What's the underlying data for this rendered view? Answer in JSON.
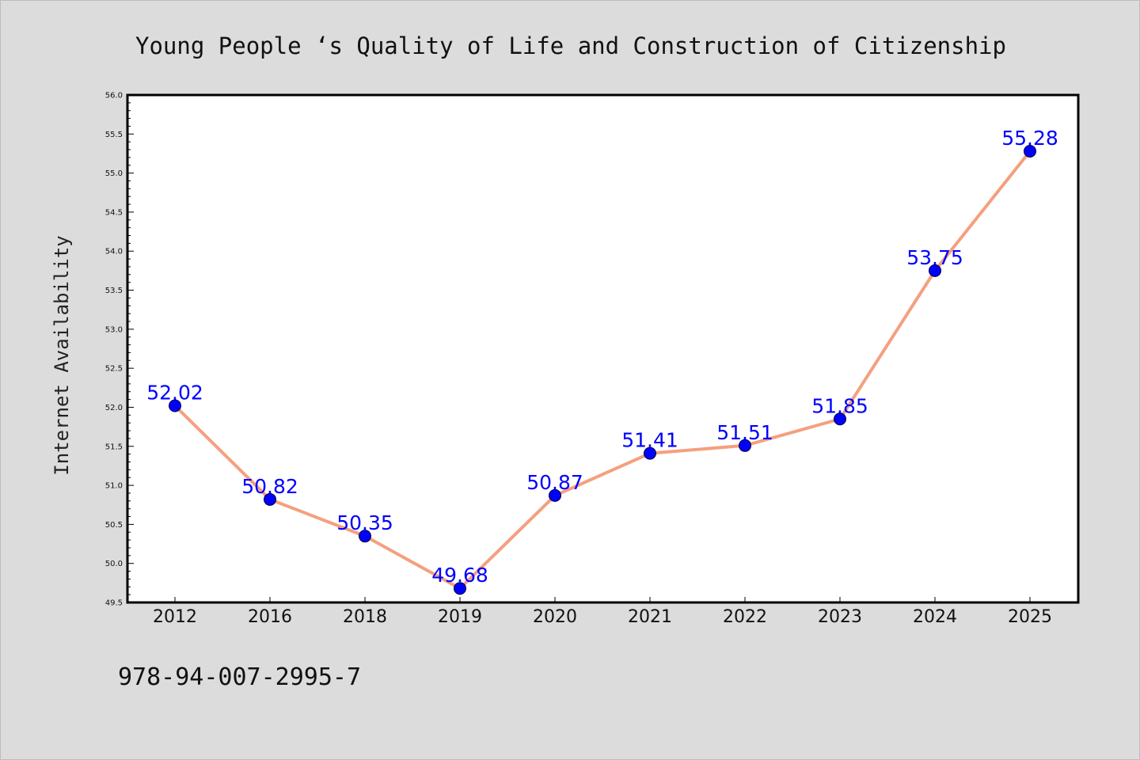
{
  "footer": {
    "code": "978-94-007-2995-7"
  },
  "colors": {
    "background": "#dcdcdc",
    "plot_background": "#ffffff",
    "line": "#f4a07e",
    "marker": "#0000ff",
    "data_label": "#0000ff",
    "axis": "#000000"
  },
  "chart_data": {
    "type": "line",
    "title": "Young People ‘s Quality of Life and Construction of Citizenship",
    "xlabel": "",
    "ylabel": "Internet Availability",
    "categories": [
      "2012",
      "2016",
      "2018",
      "2019",
      "2020",
      "2021",
      "2022",
      "2023",
      "2024",
      "2025"
    ],
    "series": [
      {
        "values": [
          52.02,
          50.82,
          50.35,
          49.68,
          50.87,
          51.41,
          51.51,
          51.85,
          53.75,
          55.28
        ],
        "data_labels": [
          "52.02",
          "50.82",
          "50.35",
          "49.68",
          "50.87",
          "51.41",
          "51.51",
          "51.85",
          "53.75",
          "55.28"
        ],
        "marker": "circle"
      }
    ],
    "ylim": [
      49.5,
      56.0
    ],
    "yticks": [
      "49.5",
      "50.0",
      "50.5",
      "51.0",
      "51.5",
      "52.0",
      "52.5",
      "53.0",
      "53.5",
      "54.0",
      "54.5",
      "55.0",
      "55.5",
      "56.0"
    ],
    "grid": false,
    "legend": "none"
  }
}
